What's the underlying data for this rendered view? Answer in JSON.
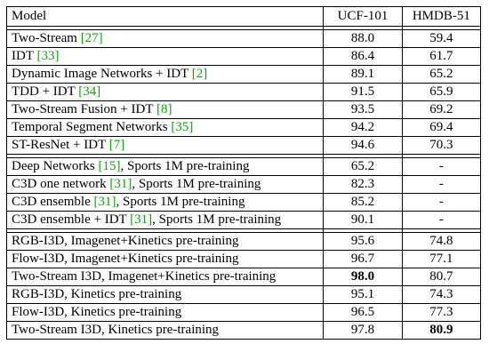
{
  "headers": {
    "model": "Model",
    "ucf": "UCF-101",
    "hmdb": "HMDB-51"
  },
  "groups": [
    [
      {
        "model": "Two-Stream",
        "cite": "27",
        "suffix": "",
        "ucf": "88.0",
        "hmdb": "59.4"
      },
      {
        "model": "IDT",
        "cite": "33",
        "suffix": "",
        "ucf": "86.4",
        "hmdb": "61.7"
      },
      {
        "model": "Dynamic Image Networks + IDT",
        "cite": "2",
        "suffix": "",
        "ucf": "89.1",
        "hmdb": "65.2"
      },
      {
        "model": "TDD + IDT",
        "cite": "34",
        "suffix": "",
        "ucf": "91.5",
        "hmdb": "65.9"
      },
      {
        "model": "Two-Stream Fusion + IDT",
        "cite": "8",
        "suffix": "",
        "ucf": "93.5",
        "hmdb": "69.2"
      },
      {
        "model": "Temporal Segment Networks",
        "cite": "35",
        "suffix": "",
        "ucf": "94.2",
        "hmdb": "69.4"
      },
      {
        "model": "ST-ResNet + IDT",
        "cite": "7",
        "suffix": "",
        "ucf": "94.6",
        "hmdb": "70.3"
      }
    ],
    [
      {
        "model": "Deep Networks",
        "cite": "15",
        "suffix": ", Sports 1M pre-training",
        "ucf": "65.2",
        "hmdb": "-"
      },
      {
        "model": "C3D one network",
        "cite": "31",
        "suffix": ", Sports 1M pre-training",
        "ucf": "82.3",
        "hmdb": "-"
      },
      {
        "model": "C3D ensemble",
        "cite": "31",
        "suffix": ", Sports 1M pre-training",
        "ucf": "85.2",
        "hmdb": "-"
      },
      {
        "model": "C3D ensemble + IDT",
        "cite": "31",
        "suffix": ", Sports 1M pre-training",
        "ucf": "90.1",
        "hmdb": "-"
      }
    ],
    [
      {
        "model": "RGB-I3D, Imagenet+Kinetics pre-training",
        "cite": "",
        "suffix": "",
        "ucf": "95.6",
        "hmdb": "74.8"
      },
      {
        "model": "Flow-I3D, Imagenet+Kinetics pre-training",
        "cite": "",
        "suffix": "",
        "ucf": "96.7",
        "hmdb": "77.1"
      },
      {
        "model": "Two-Stream I3D, Imagenet+Kinetics pre-training",
        "cite": "",
        "suffix": "",
        "ucf": "98.0",
        "hmdb": "80.7",
        "bold": "ucf"
      },
      {
        "model": "RGB-I3D, Kinetics pre-training",
        "cite": "",
        "suffix": "",
        "ucf": "95.1",
        "hmdb": "74.3"
      },
      {
        "model": "Flow-I3D, Kinetics pre-training",
        "cite": "",
        "suffix": "",
        "ucf": "96.5",
        "hmdb": "77.3"
      },
      {
        "model": "Two-Stream I3D, Kinetics pre-training",
        "cite": "",
        "suffix": "",
        "ucf": "97.8",
        "hmdb": "80.9",
        "bold": "hmdb"
      }
    ]
  ]
}
